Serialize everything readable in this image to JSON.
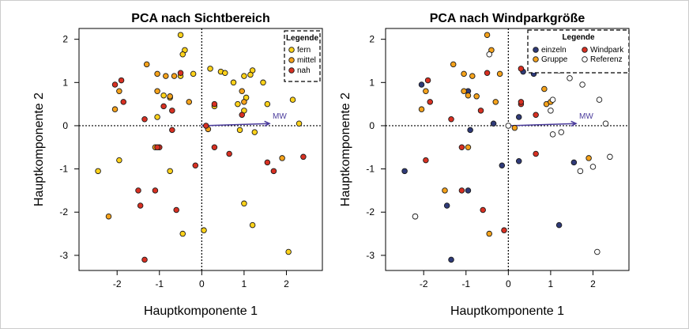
{
  "chart_data": [
    {
      "type": "scatter",
      "title": "PCA nach Sichtbereich",
      "xlabel": "Hauptkomponente 1",
      "ylabel": "Hauptkomponente 2",
      "xlim": [
        -2.9,
        2.85
      ],
      "ylim": [
        -3.35,
        2.25
      ],
      "xticks": [
        -2,
        -1,
        0,
        1,
        2
      ],
      "yticks": [
        -3,
        -2,
        -1,
        0,
        1,
        2
      ],
      "grid": false,
      "reference_lines": {
        "x": 0,
        "y": 0,
        "style": "dotted"
      },
      "arrow": {
        "label": "MW",
        "from": [
          0,
          0
        ],
        "to": [
          1.6,
          0.05
        ]
      },
      "legend": {
        "title": "Legende",
        "position": "top-right",
        "entries": [
          {
            "name": "fern",
            "color": "#ffd21a"
          },
          {
            "name": "mittel",
            "color": "#f5a21b"
          },
          {
            "name": "nah",
            "color": "#d83022"
          }
        ]
      },
      "series": [
        {
          "name": "fern",
          "color": "#ffd21a",
          "points": [
            [
              -0.5,
              2.1
            ],
            [
              -0.4,
              1.75
            ],
            [
              -0.45,
              1.65
            ],
            [
              -0.2,
              1.2
            ],
            [
              -0.5,
              1.15
            ],
            [
              -0.9,
              0.7
            ],
            [
              -0.75,
              0.65
            ],
            [
              0.2,
              1.32
            ],
            [
              0.45,
              1.25
            ],
            [
              0.55,
              1.22
            ],
            [
              0.75,
              1.0
            ],
            [
              1.0,
              1.15
            ],
            [
              1.2,
              1.28
            ],
            [
              1.15,
              1.18
            ],
            [
              1.45,
              1.0
            ],
            [
              0.85,
              0.5
            ],
            [
              1.05,
              0.65
            ],
            [
              1.0,
              0.35
            ],
            [
              1.55,
              0.5
            ],
            [
              2.15,
              0.6
            ],
            [
              0.3,
              0.45
            ],
            [
              0.9,
              -0.1
            ],
            [
              1.25,
              -0.15
            ],
            [
              -1.05,
              0.2
            ],
            [
              -1.95,
              -0.8
            ],
            [
              -2.45,
              -1.05
            ],
            [
              -0.75,
              -1.05
            ],
            [
              1.0,
              -1.8
            ],
            [
              1.2,
              -2.3
            ],
            [
              -0.45,
              -2.5
            ],
            [
              0.05,
              -2.42
            ],
            [
              2.05,
              -2.92
            ],
            [
              2.3,
              0.05
            ]
          ]
        },
        {
          "name": "mittel",
          "color": "#f5a21b",
          "points": [
            [
              -1.3,
              1.42
            ],
            [
              -1.05,
              1.2
            ],
            [
              -0.85,
              1.15
            ],
            [
              -0.65,
              1.15
            ],
            [
              -0.3,
              0.55
            ],
            [
              -0.75,
              0.68
            ],
            [
              -1.05,
              0.8
            ],
            [
              -1.95,
              0.8
            ],
            [
              -2.05,
              0.38
            ],
            [
              0.95,
              0.8
            ],
            [
              1.0,
              0.55
            ],
            [
              0.15,
              -0.08
            ],
            [
              -1.1,
              -0.5
            ],
            [
              1.9,
              -0.75
            ],
            [
              -2.2,
              -2.1
            ]
          ]
        },
        {
          "name": "nah",
          "color": "#d83022",
          "points": [
            [
              -1.9,
              1.05
            ],
            [
              -2.05,
              0.95
            ],
            [
              -1.85,
              0.55
            ],
            [
              -0.5,
              1.22
            ],
            [
              -0.9,
              0.45
            ],
            [
              -0.7,
              0.35
            ],
            [
              0.3,
              0.5
            ],
            [
              0.95,
              0.25
            ],
            [
              -1.35,
              0.15
            ],
            [
              -0.7,
              -0.1
            ],
            [
              -1.0,
              -0.5
            ],
            [
              -1.05,
              -0.5
            ],
            [
              0.1,
              0.0
            ],
            [
              0.3,
              -0.5
            ],
            [
              0.65,
              -0.65
            ],
            [
              1.55,
              -0.85
            ],
            [
              1.7,
              -1.05
            ],
            [
              2.4,
              -0.72
            ],
            [
              -0.15,
              -0.92
            ],
            [
              -1.5,
              -1.5
            ],
            [
              -1.1,
              -1.5
            ],
            [
              -1.45,
              -1.85
            ],
            [
              -0.6,
              -1.95
            ],
            [
              -1.35,
              -3.1
            ]
          ]
        }
      ]
    },
    {
      "type": "scatter",
      "title": "PCA nach Windparkgröße",
      "xlabel": "Hauptkomponente 1",
      "ylabel": "Hauptkomponente 2",
      "xlim": [
        -2.9,
        2.85
      ],
      "ylim": [
        -3.35,
        2.25
      ],
      "xticks": [
        -2,
        -1,
        0,
        1,
        2
      ],
      "yticks": [
        -3,
        -2,
        -1,
        0,
        1,
        2
      ],
      "grid": false,
      "reference_lines": {
        "x": 0,
        "y": 0,
        "style": "dotted"
      },
      "arrow": {
        "label": "MW",
        "from": [
          0,
          0
        ],
        "to": [
          1.6,
          0.05
        ]
      },
      "legend": {
        "title": "Legende",
        "position": "top-right",
        "entries": [
          {
            "name": "einzeln",
            "color": "#2f3a78"
          },
          {
            "name": "Windpark",
            "color": "#d83022"
          },
          {
            "name": "Gruppe",
            "color": "#f5a21b"
          },
          {
            "name": "Referenz",
            "color": "#ffffff"
          }
        ]
      },
      "series": [
        {
          "name": "einzeln",
          "color": "#2f3a78",
          "points": [
            [
              1.2,
              1.28
            ],
            [
              0.35,
              1.25
            ],
            [
              0.6,
              1.2
            ],
            [
              -2.05,
              0.95
            ],
            [
              -0.95,
              0.8
            ],
            [
              -0.35,
              0.05
            ],
            [
              -0.9,
              -0.1
            ],
            [
              0.25,
              0.2
            ],
            [
              -0.15,
              -0.92
            ],
            [
              0.25,
              -0.82
            ],
            [
              -2.45,
              -1.05
            ],
            [
              1.55,
              -0.85
            ],
            [
              -0.95,
              -1.5
            ],
            [
              -1.45,
              -1.85
            ],
            [
              -1.35,
              -3.1
            ],
            [
              1.2,
              -2.3
            ]
          ]
        },
        {
          "name": "Windpark",
          "color": "#d83022",
          "points": [
            [
              -1.9,
              1.05
            ],
            [
              -1.85,
              0.55
            ],
            [
              0.3,
              1.32
            ],
            [
              -0.5,
              1.22
            ],
            [
              -0.65,
              0.35
            ],
            [
              0.3,
              0.5
            ],
            [
              0.65,
              0.25
            ],
            [
              0.3,
              0.55
            ],
            [
              -1.35,
              0.15
            ],
            [
              -1.1,
              -0.5
            ],
            [
              0.65,
              -0.65
            ],
            [
              -1.95,
              -0.8
            ],
            [
              -1.1,
              -1.5
            ],
            [
              -0.1,
              -2.42
            ],
            [
              -0.6,
              -1.95
            ]
          ]
        },
        {
          "name": "Gruppe",
          "color": "#f5a21b",
          "points": [
            [
              -0.5,
              2.1
            ],
            [
              -0.4,
              1.75
            ],
            [
              -1.3,
              1.42
            ],
            [
              -1.05,
              1.2
            ],
            [
              -0.85,
              1.15
            ],
            [
              -0.2,
              1.2
            ],
            [
              -0.75,
              0.68
            ],
            [
              -1.05,
              0.8
            ],
            [
              -1.95,
              0.8
            ],
            [
              -2.05,
              0.38
            ],
            [
              -0.95,
              0.7
            ],
            [
              -0.3,
              0.55
            ],
            [
              0.85,
              0.85
            ],
            [
              0.9,
              0.5
            ],
            [
              1.0,
              0.55
            ],
            [
              -1.5,
              -1.5
            ],
            [
              -2.2,
              -2.1
            ],
            [
              -0.45,
              -2.5
            ],
            [
              1.9,
              -0.75
            ],
            [
              -0.95,
              -0.5
            ],
            [
              0.15,
              -0.05
            ]
          ]
        },
        {
          "name": "Referenz",
          "color": "#ffffff",
          "points": [
            [
              -0.45,
              1.65
            ],
            [
              1.45,
              1.1
            ],
            [
              1.75,
              0.95
            ],
            [
              2.15,
              0.6
            ],
            [
              1.0,
              0.35
            ],
            [
              1.05,
              0.6
            ],
            [
              2.3,
              0.05
            ],
            [
              1.05,
              -0.2
            ],
            [
              1.25,
              -0.15
            ],
            [
              1.7,
              -1.05
            ],
            [
              2.0,
              -0.95
            ],
            [
              2.4,
              -0.72
            ],
            [
              0.0,
              0.0
            ],
            [
              2.1,
              -2.92
            ],
            [
              -2.2,
              -2.1
            ]
          ]
        }
      ]
    }
  ]
}
